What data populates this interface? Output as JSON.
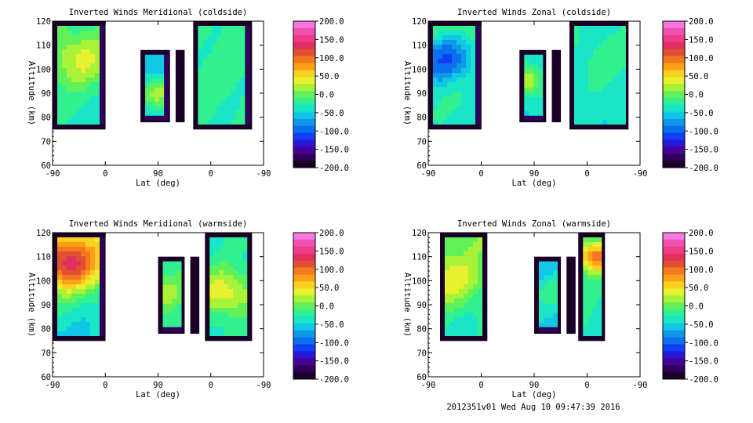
{
  "chart_data": [
    {
      "type": "heatmap",
      "title": "Inverted Winds Meridional (coldside)",
      "xlabel": "Lat (deg)",
      "ylabel": "Altitude (km)",
      "x_ticks": [
        "-90",
        "0",
        "90",
        "0",
        "-90"
      ],
      "y_ticks": [
        120,
        110,
        100,
        90,
        80,
        70,
        60
      ],
      "ylim": [
        60,
        120
      ],
      "blobs": [
        {
          "x0": -90,
          "x1": 0,
          "y0": 75,
          "y1": 120,
          "base": -25,
          "trend": 0.08,
          "spot": {
            "x": -45,
            "y": 104,
            "v": 30
          }
        },
        {
          "x0": 60,
          "x1": 110,
          "y0": 78,
          "y1": 108,
          "base": -55,
          "trend": 0,
          "spot": {
            "x": 85,
            "y": 90,
            "v": 20
          }
        },
        {
          "x0": 120,
          "x1": 135,
          "y0": 78,
          "y1": 108,
          "base": -150,
          "trend": 0,
          "spot": {
            "x": 127,
            "y": 95,
            "v": -160
          }
        },
        {
          "x0": 150,
          "x1": 250,
          "y0": 75,
          "y1": 120,
          "base": -25,
          "trend": 0.05,
          "spot": {
            "x": 200,
            "y": 95,
            "v": -20
          }
        }
      ]
    },
    {
      "type": "heatmap",
      "title": "Inverted Winds Zonal (coldside)",
      "xlabel": "Lat (deg)",
      "ylabel": "Altitude (km)",
      "x_ticks": [
        "-90",
        "0",
        "90",
        "0",
        "-90"
      ],
      "y_ticks": [
        120,
        110,
        100,
        90,
        80,
        70,
        60
      ],
      "ylim": [
        60,
        120
      ],
      "blobs": [
        {
          "x0": -90,
          "x1": 0,
          "y0": 75,
          "y1": 120,
          "base": -15,
          "trend": 0.35,
          "spot": {
            "x": -62,
            "y": 105,
            "v": -110
          }
        },
        {
          "x0": 65,
          "x1": 110,
          "y0": 78,
          "y1": 108,
          "base": -45,
          "trend": 0,
          "spot": {
            "x": 75,
            "y": 95,
            "v": 30
          }
        },
        {
          "x0": 120,
          "x1": 135,
          "y0": 78,
          "y1": 108,
          "base": -150,
          "trend": 0,
          "spot": {
            "x": 127,
            "y": 95,
            "v": -170
          }
        },
        {
          "x0": 150,
          "x1": 250,
          "y0": 75,
          "y1": 120,
          "base": -40,
          "trend": 0,
          "spot": {
            "x": 210,
            "y": 105,
            "v": -20
          }
        }
      ]
    },
    {
      "type": "heatmap",
      "title": "Inverted Winds Meridional (warmside)",
      "xlabel": "Lat (deg)",
      "ylabel": "Altitude (km)",
      "x_ticks": [
        "-90",
        "0",
        "90",
        "0",
        "-90"
      ],
      "y_ticks": [
        120,
        110,
        100,
        90,
        80,
        70,
        60
      ],
      "ylim": [
        60,
        120
      ],
      "blobs": [
        {
          "x0": -90,
          "x1": 0,
          "y0": 75,
          "y1": 120,
          "base": -20,
          "trend": 0.5,
          "spot": {
            "x": -65,
            "y": 107,
            "v": 120
          }
        },
        {
          "x0": 90,
          "x1": 135,
          "y0": 78,
          "y1": 110,
          "base": -20,
          "trend": 0,
          "spot": {
            "x": 95,
            "y": 95,
            "v": 20
          }
        },
        {
          "x0": 145,
          "x1": 160,
          "y0": 78,
          "y1": 110,
          "base": -150,
          "trend": 0,
          "spot": {
            "x": 152,
            "y": 95,
            "v": -170
          }
        },
        {
          "x0": 170,
          "x1": 250,
          "y0": 75,
          "y1": 120,
          "base": -30,
          "trend": 0,
          "spot": {
            "x": 205,
            "y": 95,
            "v": 40
          }
        }
      ]
    },
    {
      "type": "heatmap",
      "title": "Inverted Winds Zonal (warmside)",
      "xlabel": "Lat (deg)",
      "ylabel": "Altitude (km)",
      "x_ticks": [
        "-90",
        "0",
        "90",
        "0",
        "-90"
      ],
      "y_ticks": [
        120,
        110,
        100,
        90,
        80,
        70,
        60
      ],
      "ylim": [
        60,
        120
      ],
      "blobs": [
        {
          "x0": -70,
          "x1": 10,
          "y0": 75,
          "y1": 120,
          "base": -15,
          "trend": 0.3,
          "spot": {
            "x": -55,
            "y": 100,
            "v": 40
          }
        },
        {
          "x0": 90,
          "x1": 135,
          "y0": 78,
          "y1": 110,
          "base": -55,
          "trend": 0,
          "spot": {
            "x": 120,
            "y": 95,
            "v": -20
          }
        },
        {
          "x0": 145,
          "x1": 160,
          "y0": 78,
          "y1": 110,
          "base": -150,
          "trend": 0,
          "spot": {
            "x": 152,
            "y": 95,
            "v": -170
          }
        },
        {
          "x0": 165,
          "x1": 210,
          "y0": 75,
          "y1": 120,
          "base": -30,
          "trend": 0,
          "spot": {
            "x": 195,
            "y": 110,
            "v": 100
          }
        }
      ]
    }
  ],
  "colorbar": {
    "ticks": [
      "200.0",
      "150.0",
      "100.0",
      "50.0",
      "0.0",
      "-50.0",
      "-100.0",
      "-150.0",
      "-200.0"
    ],
    "range": [
      -200,
      200
    ],
    "colors": [
      "#1a0026",
      "#30005a",
      "#48009a",
      "#2818d8",
      "#1040f4",
      "#0a70ee",
      "#1098e8",
      "#10c8e6",
      "#18e6c6",
      "#30f090",
      "#60f058",
      "#a8f238",
      "#e8f030",
      "#fcd020",
      "#fca018",
      "#f47820",
      "#e05030",
      "#e03060",
      "#f03c88",
      "#f050b0",
      "#f878e0"
    ]
  },
  "footer": "2012351v01 Wed Aug 10 09:47:39 2016"
}
